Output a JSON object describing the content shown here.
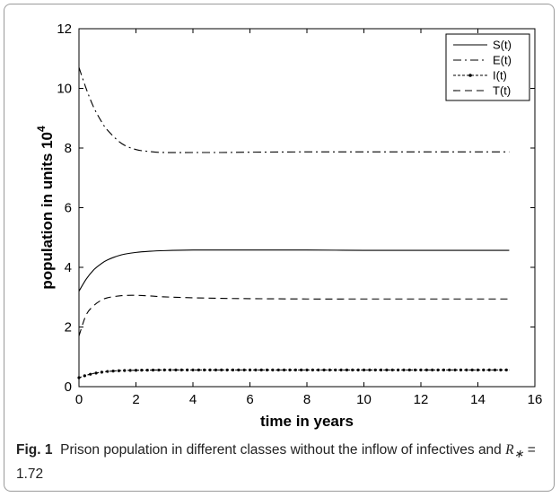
{
  "chart_data": {
    "type": "line",
    "title": "",
    "xlabel": "time in years",
    "ylabel": "population in units 10",
    "ylabel_superscript": "4",
    "xlim": [
      0,
      16
    ],
    "ylim": [
      0,
      12
    ],
    "xticks": [
      "0",
      "2",
      "4",
      "6",
      "8",
      "10",
      "12",
      "14",
      "16"
    ],
    "yticks": [
      "0",
      "2",
      "4",
      "6",
      "8",
      "10",
      "12"
    ],
    "grid": false,
    "legend_position": "top-right",
    "series": [
      {
        "name": "S(t)",
        "style": "solid",
        "x": [
          0,
          0.25,
          0.5,
          0.75,
          1,
          1.5,
          2,
          2.5,
          3,
          4,
          5,
          6,
          8,
          10,
          12,
          14,
          15.1
        ],
        "y": [
          3.2,
          3.6,
          3.9,
          4.1,
          4.25,
          4.42,
          4.5,
          4.54,
          4.56,
          4.58,
          4.58,
          4.58,
          4.58,
          4.57,
          4.57,
          4.57,
          4.57
        ]
      },
      {
        "name": "E(t)",
        "style": "dashdot",
        "x": [
          0,
          0.25,
          0.5,
          0.75,
          1,
          1.5,
          2,
          2.5,
          3,
          4,
          5,
          6,
          8,
          10,
          12,
          14,
          15.1
        ],
        "y": [
          10.7,
          10.0,
          9.4,
          8.95,
          8.6,
          8.15,
          7.95,
          7.88,
          7.85,
          7.85,
          7.85,
          7.86,
          7.87,
          7.87,
          7.87,
          7.87,
          7.87
        ]
      },
      {
        "name": "I(t)",
        "style": "dotted-marker",
        "x": [
          0,
          0.25,
          0.5,
          0.75,
          1,
          1.5,
          2,
          3,
          4,
          6,
          8,
          10,
          12,
          14,
          15.1
        ],
        "y": [
          0.3,
          0.38,
          0.44,
          0.48,
          0.51,
          0.54,
          0.55,
          0.56,
          0.56,
          0.56,
          0.56,
          0.56,
          0.56,
          0.56,
          0.56
        ]
      },
      {
        "name": "T(t)",
        "style": "dashed",
        "x": [
          0,
          0.25,
          0.5,
          0.75,
          1,
          1.5,
          2,
          2.5,
          3,
          4,
          5,
          6,
          8,
          10,
          12,
          14,
          15.1
        ],
        "y": [
          1.7,
          2.4,
          2.7,
          2.88,
          2.98,
          3.05,
          3.06,
          3.04,
          3.01,
          2.98,
          2.96,
          2.95,
          2.94,
          2.94,
          2.94,
          2.94,
          2.94
        ]
      }
    ]
  },
  "caption": {
    "fig_label": "Fig. 1",
    "text_before": "Prison population in different classes without the inflow of infectives and ",
    "math": "R",
    "math_sub": "∗",
    "text_after": " = 1.72"
  }
}
